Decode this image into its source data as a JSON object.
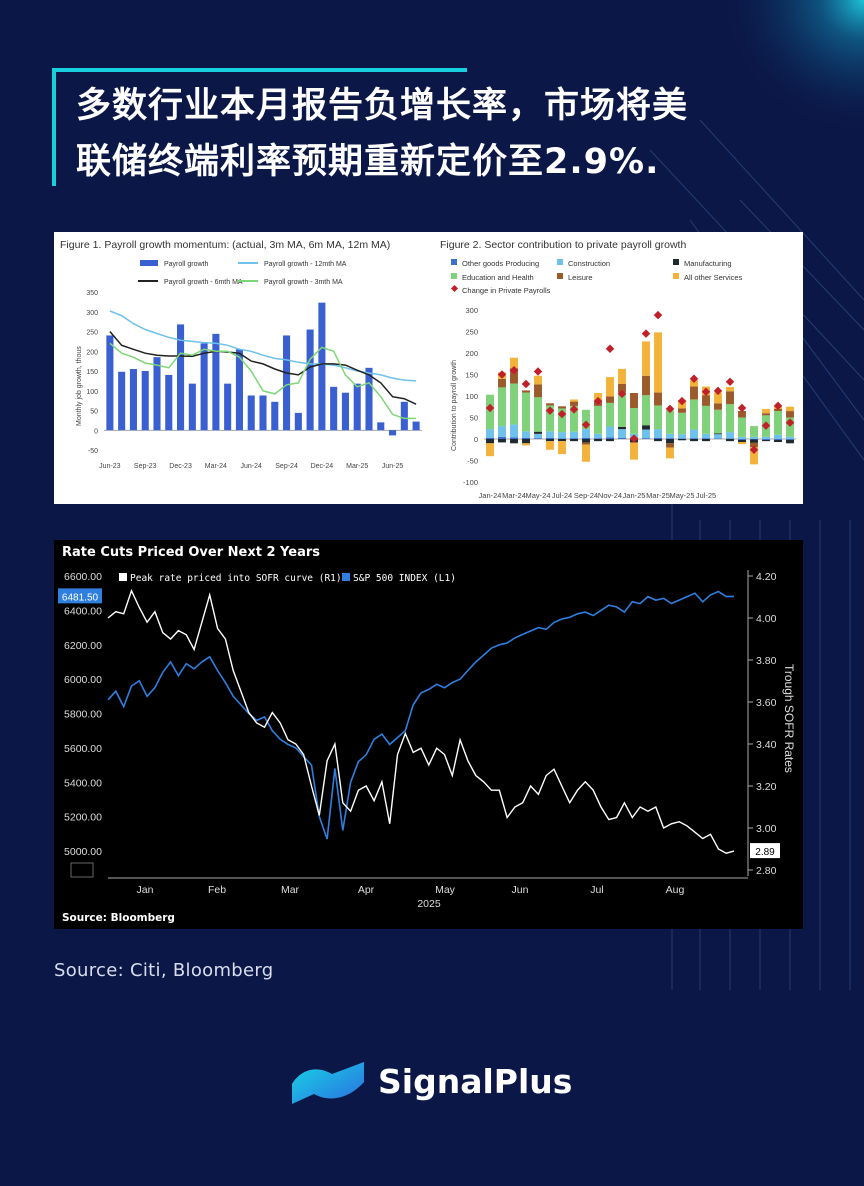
{
  "headline": {
    "line1": "多数行业本月报告负增长率，市场将美",
    "line2": "联储终端利率预期重新定价至2.9%."
  },
  "source_text": "Source: Citi, Bloomberg",
  "brand_name": "SignalPlus",
  "colors": {
    "background": "#0b1747",
    "accent": "#18cfe0",
    "bar_blue": "#3a5fd0",
    "spx_blue": "#2f7fe0"
  },
  "chart_data": [
    {
      "type": "bar",
      "title": "Figure 1. Payroll growth momentum: (actual, 3m MA, 6m MA, 12m MA)",
      "ylabel": "Monthly job growth, thous",
      "ylim": [
        -50,
        350
      ],
      "yticks": [
        -50,
        0,
        50,
        100,
        150,
        200,
        250,
        300,
        350
      ],
      "xtick_labels": [
        "Jun-23",
        "Sep-23",
        "Dec-23",
        "Mar-24",
        "Jun-24",
        "Sep-24",
        "Dec-24",
        "Mar-25",
        "Jun-25"
      ],
      "legend": [
        "Payroll growth",
        "Payroll growth - 12mth MA",
        "Payroll growth - 6mth MA",
        "Payroll growth - 3mth MA"
      ],
      "bars": [
        240,
        148,
        155,
        150,
        185,
        140,
        268,
        118,
        220,
        244,
        118,
        205,
        88,
        88,
        72,
        240,
        44,
        255,
        323,
        110,
        95,
        118,
        158,
        20,
        -13,
        72,
        22
      ],
      "ma12": [
        302,
        290,
        270,
        255,
        245,
        235,
        228,
        225,
        222,
        220,
        215,
        205,
        200,
        190,
        182,
        178,
        172,
        168,
        168,
        165,
        158,
        150,
        145,
        140,
        132,
        127,
        125
      ],
      "ma6": [
        250,
        215,
        205,
        195,
        190,
        188,
        188,
        187,
        195,
        200,
        198,
        195,
        175,
        168,
        155,
        145,
        140,
        160,
        168,
        168,
        165,
        152,
        140,
        120,
        85,
        80,
        66
      ],
      "ma3": [
        220,
        195,
        185,
        170,
        165,
        158,
        195,
        190,
        205,
        200,
        200,
        185,
        150,
        100,
        92,
        115,
        120,
        180,
        210,
        200,
        140,
        110,
        120,
        85,
        40,
        30,
        30
      ]
    },
    {
      "type": "bar",
      "title": "Figure 2. Sector contribution to private payroll growth",
      "ylabel": "Contribution to payroll growth",
      "ylim": [
        -100,
        300
      ],
      "yticks": [
        -100,
        -50,
        0,
        50,
        100,
        150,
        200,
        250,
        300
      ],
      "xtick_labels": [
        "Jan-24",
        "Mar-24",
        "May-24",
        "Jul-24",
        "Sep-24",
        "Nov-24",
        "Jan-25",
        "Mar-25",
        "May-25",
        "Jul-25"
      ],
      "legend": [
        "Other goods Producing",
        "Construction",
        "Manufacturing",
        "Education and Health",
        "Leisure",
        "All other Services",
        "Change in  Private Payrolls"
      ],
      "series": [
        {
          "name": "Other goods Producing",
          "values": [
            3,
            5,
            4,
            3,
            2,
            3,
            1,
            2,
            3,
            2,
            4,
            3,
            2,
            2,
            3,
            2,
            1,
            2,
            2,
            1,
            1,
            -2,
            -1,
            -2,
            -2,
            -2
          ]
        },
        {
          "name": "Construction",
          "values": [
            20,
            25,
            30,
            15,
            10,
            15,
            15,
            15,
            20,
            10,
            25,
            20,
            10,
            20,
            20,
            10,
            10,
            20,
            10,
            10,
            15,
            5,
            5,
            5,
            10,
            5
          ]
        },
        {
          "name": "Manufacturing",
          "values": [
            -10,
            -8,
            -10,
            -10,
            5,
            -5,
            -5,
            -5,
            -8,
            -5,
            -5,
            5,
            -8,
            10,
            -5,
            -10,
            -3,
            -5,
            -5,
            2,
            -5,
            -5,
            -8,
            -3,
            -5,
            -8
          ]
        },
        {
          "name": "Education and Health",
          "values": [
            80,
            90,
            95,
            90,
            80,
            60,
            55,
            60,
            45,
            65,
            55,
            80,
            60,
            70,
            55,
            55,
            50,
            70,
            65,
            55,
            65,
            45,
            25,
            50,
            55,
            45
          ]
        },
        {
          "name": "Leisure",
          "values": [
            0,
            20,
            35,
            5,
            30,
            5,
            5,
            10,
            -5,
            10,
            15,
            20,
            35,
            45,
            30,
            -10,
            10,
            30,
            25,
            15,
            30,
            15,
            -10,
            5,
            5,
            15
          ]
        },
        {
          "name": "All other Services",
          "values": [
            -30,
            15,
            25,
            -5,
            20,
            -20,
            -30,
            5,
            -40,
            20,
            45,
            35,
            -40,
            80,
            140,
            -25,
            20,
            15,
            20,
            25,
            10,
            -5,
            -40,
            10,
            5,
            10
          ]
        },
        {
          "name": "Change in  Private Payrolls",
          "values": [
            72,
            150,
            160,
            128,
            157,
            66,
            58,
            69,
            33,
            88,
            210,
            105,
            1,
            245,
            288,
            70,
            88,
            140,
            110,
            112,
            133,
            72,
            -25,
            31,
            77,
            38
          ]
        }
      ]
    },
    {
      "type": "line",
      "title": "Rate Cuts Priced Over Next 2 Years",
      "source": "Source: Bloomberg",
      "x_labels": [
        "Jan",
        "Feb",
        "Mar",
        "Apr",
        "May",
        "Jun",
        "Jul",
        "Aug"
      ],
      "x_year": "2025",
      "y_left_label": "",
      "y_left_ticks": [
        5000.0,
        5200.0,
        5400.0,
        5600.0,
        5800.0,
        6000.0,
        6200.0,
        6400.0,
        6600.0
      ],
      "y_left_tick_labels": [
        "5000.00",
        "5200.00",
        "5400.00",
        "5600.00",
        "5800.00",
        "6000.00",
        "6200.00",
        "6400.00",
        "6600.00"
      ],
      "y_right_label": "Trough SOFR Rates",
      "y_right_ticks": [
        2.8,
        3.0,
        3.2,
        3.4,
        3.6,
        3.8,
        4.0,
        4.2
      ],
      "y_right_tick_labels": [
        "2.80",
        "3.00",
        "3.20",
        "3.40",
        "3.60",
        "3.80",
        "4.00",
        "4.20"
      ],
      "last_left_label": "6481.50",
      "last_right_label": "2.89",
      "legend": [
        "Peak rate priced into SOFR curve (R1)",
        "S&P 500 INDEX (L1)"
      ],
      "series": [
        {
          "name": "Peak rate priced into SOFR curve (R1)",
          "axis": "right",
          "x": [
            0,
            3,
            6,
            9,
            12,
            15,
            18,
            21,
            24,
            27,
            30,
            33,
            36,
            39,
            42,
            45,
            48,
            51,
            54,
            57,
            60,
            63,
            66,
            69,
            72,
            75,
            78,
            81,
            84,
            87,
            90,
            93,
            96,
            99,
            102,
            105,
            108,
            111,
            114,
            117,
            120,
            123,
            126,
            129,
            132,
            135,
            138,
            141,
            144,
            147,
            150,
            153,
            156,
            159,
            162,
            165,
            168,
            171,
            174,
            177,
            180,
            183,
            186,
            189,
            192,
            195,
            198,
            201,
            204,
            207,
            210,
            213,
            216,
            219,
            222,
            225,
            228,
            231,
            234,
            237,
            240
          ],
          "values": [
            4.0,
            4.03,
            4.02,
            4.13,
            4.05,
            3.98,
            4.03,
            3.93,
            3.9,
            3.94,
            3.92,
            3.85,
            3.98,
            4.11,
            3.95,
            3.9,
            3.75,
            3.65,
            3.55,
            3.5,
            3.48,
            3.55,
            3.5,
            3.42,
            3.4,
            3.35,
            3.2,
            3.06,
            3.32,
            3.4,
            3.12,
            3.08,
            3.18,
            3.2,
            3.13,
            3.22,
            3.02,
            3.35,
            3.45,
            3.36,
            3.38,
            3.3,
            3.38,
            3.35,
            3.25,
            3.42,
            3.32,
            3.25,
            3.22,
            3.18,
            3.18,
            3.05,
            3.1,
            3.12,
            3.2,
            3.16,
            3.25,
            3.28,
            3.2,
            3.12,
            3.18,
            3.22,
            3.18,
            3.1,
            3.04,
            3.05,
            3.12,
            3.05,
            3.1,
            3.08,
            3.1,
            3.0,
            3.02,
            3.03,
            3.01,
            2.98,
            2.95,
            2.97,
            2.9,
            2.88,
            2.89
          ]
        },
        {
          "name": "S&P 500 INDEX (L1)",
          "axis": "left",
          "x": [
            0,
            3,
            6,
            9,
            12,
            15,
            18,
            21,
            24,
            27,
            30,
            33,
            36,
            39,
            42,
            45,
            48,
            51,
            54,
            57,
            60,
            63,
            66,
            69,
            72,
            75,
            78,
            81,
            84,
            87,
            90,
            93,
            96,
            99,
            102,
            105,
            108,
            111,
            114,
            117,
            120,
            123,
            126,
            129,
            132,
            135,
            138,
            141,
            144,
            147,
            150,
            153,
            156,
            159,
            162,
            165,
            168,
            171,
            174,
            177,
            180,
            183,
            186,
            189,
            192,
            195,
            198,
            201,
            204,
            207,
            210,
            213,
            216,
            219,
            222,
            225,
            228,
            231,
            234,
            237,
            240
          ],
          "values": [
            5880,
            5930,
            5840,
            5960,
            5990,
            5900,
            5950,
            6040,
            6100,
            6020,
            6090,
            6060,
            6100,
            6130,
            6050,
            5980,
            5900,
            5850,
            5800,
            5760,
            5780,
            5700,
            5650,
            5620,
            5600,
            5550,
            5500,
            5200,
            5070,
            5480,
            5120,
            5400,
            5520,
            5560,
            5650,
            5680,
            5620,
            5660,
            5700,
            5850,
            5920,
            5940,
            5970,
            5950,
            5980,
            6000,
            6050,
            6100,
            6140,
            6180,
            6200,
            6210,
            6240,
            6260,
            6280,
            6300,
            6290,
            6330,
            6350,
            6360,
            6380,
            6390,
            6370,
            6400,
            6430,
            6420,
            6390,
            6450,
            6440,
            6480,
            6460,
            6470,
            6440,
            6460,
            6480,
            6500,
            6450,
            6490,
            6510,
            6480,
            6481.5
          ]
        }
      ]
    }
  ]
}
